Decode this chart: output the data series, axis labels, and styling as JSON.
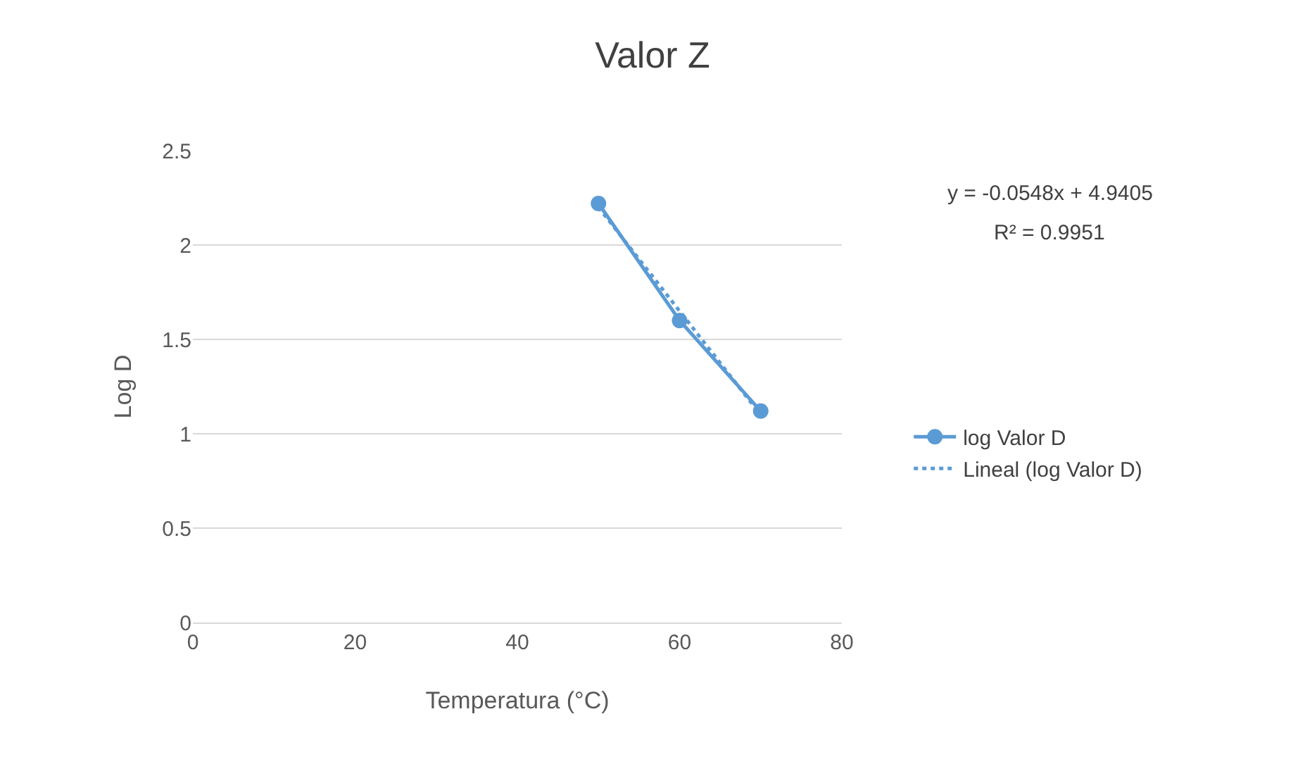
{
  "chart_data": {
    "type": "line",
    "title": "Valor Z",
    "xlabel": "Temperatura (°C)",
    "ylabel": "Log D",
    "xlim": [
      0,
      80
    ],
    "xticks": [
      0,
      20,
      40,
      60,
      80
    ],
    "ylim": [
      0,
      2.5
    ],
    "yticks": [
      0,
      0.5,
      1,
      1.5,
      2,
      2.5
    ],
    "grid": "y",
    "legend": "right",
    "annotations": [
      "y = -0.0548x + 4.9405",
      "R² = 0.9951"
    ],
    "series": [
      {
        "name": "log Valor D",
        "color": "#5b9bd5",
        "x": [
          50,
          60,
          70
        ],
        "values": [
          2.22,
          1.6,
          1.12
        ],
        "marker": "circle",
        "line_style": "solid"
      },
      {
        "name": "Lineal (log Valor D)",
        "color": "#5b9bd5",
        "x": [
          50,
          70
        ],
        "values": [
          2.2,
          1.1
        ],
        "marker": "none",
        "line_style": "dotted"
      }
    ]
  }
}
